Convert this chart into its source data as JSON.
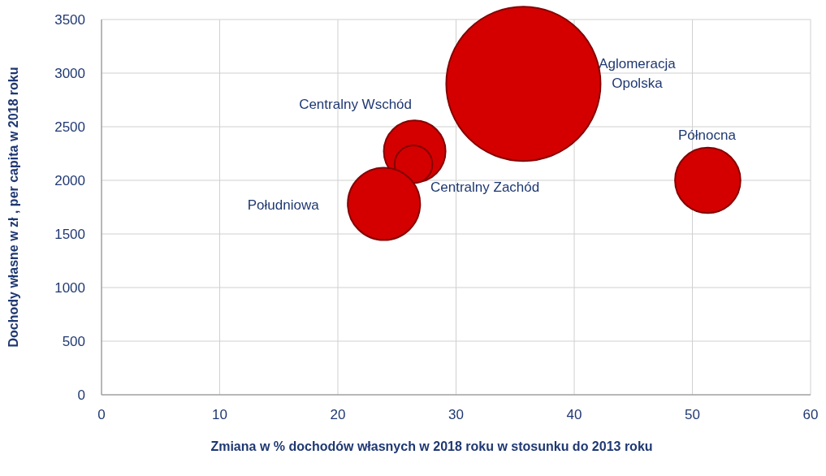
{
  "chart_data": {
    "type": "bubble",
    "xlabel": "Zmiana w % dochodów własnych w 2018 roku w stosunku do 2013 roku",
    "ylabel": "Dochody własne w zł , per capita w 2018 roku",
    "xlim": [
      0,
      60
    ],
    "xticks": [
      0,
      10,
      20,
      30,
      40,
      50,
      60
    ],
    "ylim": [
      0,
      3500
    ],
    "yticks": [
      0,
      500,
      1000,
      1500,
      2000,
      2500,
      3000,
      3500
    ],
    "grid": true,
    "series": [
      {
        "name": "Aglomeracja Opolska",
        "color": "#d40000",
        "x": [
          35.7
        ],
        "values": [
          2900
        ],
        "sizes": [
          1
        ]
      },
      {
        "name": "Centralny Wschód",
        "color": "#d40000",
        "x": [
          26.5
        ],
        "values": [
          2270
        ],
        "sizes": [
          0.16
        ]
      },
      {
        "name": "Centralny Zachód",
        "color": "#d40000",
        "x": [
          26.4
        ],
        "values": [
          2150
        ],
        "sizes": [
          0.06
        ]
      },
      {
        "name": "Południowa",
        "color": "#d40000",
        "x": [
          23.9
        ],
        "values": [
          1780
        ],
        "sizes": [
          0.22
        ]
      },
      {
        "name": "Północna",
        "color": "#d40000",
        "x": [
          51.3
        ],
        "values": [
          2000
        ],
        "sizes": [
          0.18
        ]
      }
    ]
  }
}
